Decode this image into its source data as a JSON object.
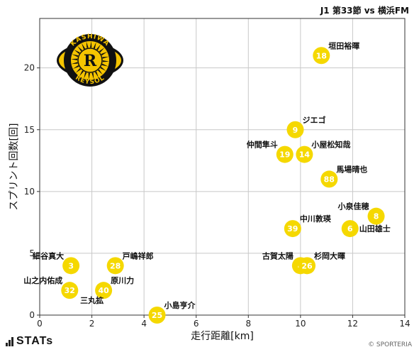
{
  "header": {
    "title": "J1 第33節 vs 横浜FM"
  },
  "footer": {
    "brand": "STATs",
    "credit": "© SPORTERIA"
  },
  "logo": {
    "top_text": "KASHIWA",
    "bottom_text": "REYSOL",
    "letter": "R",
    "colors": {
      "gold": "#f5c400",
      "black": "#111111"
    }
  },
  "chart_data": {
    "type": "scatter",
    "xlabel": "走行距離[km]",
    "ylabel": "スプリント回数[回]",
    "xlim": [
      0,
      14
    ],
    "ylim": [
      0,
      24
    ],
    "xticks": [
      0,
      2,
      4,
      6,
      8,
      10,
      12,
      14
    ],
    "yticks": [
      0,
      5,
      10,
      15,
      20
    ],
    "grid": true,
    "marker_color": "#f5d800",
    "points": [
      {
        "number": "18",
        "name": "垣田裕暉",
        "x": 10.8,
        "y": 21,
        "label_pos": "upper-right"
      },
      {
        "number": "9",
        "name": "ジエゴ",
        "x": 9.8,
        "y": 15,
        "label_pos": "upper-right"
      },
      {
        "number": "19",
        "name": "仲間隼斗",
        "x": 9.4,
        "y": 13,
        "label_pos": "upper-left"
      },
      {
        "number": "14",
        "name": "小屋松知哉",
        "x": 10.15,
        "y": 13,
        "label_pos": "upper-right"
      },
      {
        "number": "88",
        "name": "馬場晴也",
        "x": 11.1,
        "y": 11,
        "label_pos": "upper-right"
      },
      {
        "number": "8",
        "name": "小泉佳穂",
        "x": 12.9,
        "y": 8,
        "label_pos": "upper-left"
      },
      {
        "number": "6",
        "name": "山田雄士",
        "x": 11.9,
        "y": 7,
        "label_pos": "right"
      },
      {
        "number": "39",
        "name": "中川敦瑛",
        "x": 9.7,
        "y": 7,
        "label_pos": "upper-right"
      },
      {
        "number": "4",
        "name": "古賀太陽",
        "x": 10.0,
        "y": 4,
        "label_pos": "upper-left"
      },
      {
        "number": "26",
        "name": "杉岡大暉",
        "x": 10.25,
        "y": 4,
        "label_pos": "upper-right"
      },
      {
        "number": "3",
        "name": "細谷真大",
        "x": 1.2,
        "y": 4,
        "label_pos": "upper-left"
      },
      {
        "number": "28",
        "name": "戸嶋祥郎",
        "x": 2.9,
        "y": 4,
        "label_pos": "upper-right"
      },
      {
        "number": "32",
        "name": "山之内佑成",
        "x": 1.15,
        "y": 2,
        "label_pos": "upper-left"
      },
      {
        "number": "40",
        "name": "原川力",
        "x": 2.45,
        "y": 2,
        "label_pos": "upper-right"
      },
      {
        "number": "",
        "name": "三丸拡",
        "x": 2.45,
        "y": 2,
        "label_pos": "lower-left"
      },
      {
        "number": "25",
        "name": "小島亨介",
        "x": 4.5,
        "y": 0,
        "label_pos": "upper-right"
      }
    ]
  }
}
